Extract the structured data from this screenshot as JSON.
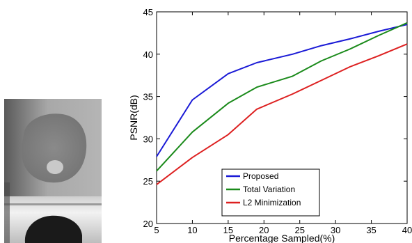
{
  "chart_data": {
    "type": "line",
    "xlabel": "Percentage Sampled(%)",
    "ylabel": "PSNR(dB)",
    "xlim": [
      5,
      40
    ],
    "ylim": [
      20,
      45
    ],
    "xticks": [
      5,
      10,
      15,
      20,
      25,
      30,
      35,
      40
    ],
    "yticks": [
      20,
      25,
      30,
      35,
      40,
      45
    ],
    "grid": false,
    "legend_position": "bottom-left",
    "series": [
      {
        "name": "Proposed",
        "color": "#1a1ad6",
        "x": [
          5,
          10,
          15,
          19,
          24,
          28,
          32,
          36,
          40
        ],
        "y": [
          27.9,
          34.6,
          37.7,
          39.0,
          40.0,
          41.0,
          41.8,
          42.7,
          43.5
        ]
      },
      {
        "name": "Total Variation",
        "color": "#1a8a1a",
        "x": [
          5,
          10,
          15,
          19,
          24,
          28,
          32,
          36,
          40
        ],
        "y": [
          26.2,
          30.8,
          34.2,
          36.1,
          37.4,
          39.2,
          40.6,
          42.2,
          43.7
        ]
      },
      {
        "name": "L2 Minimization",
        "color": "#dd2020",
        "x": [
          5,
          10,
          15,
          19,
          24,
          28,
          32,
          36,
          40
        ],
        "y": [
          24.6,
          27.8,
          30.5,
          33.5,
          35.3,
          36.9,
          38.5,
          39.8,
          41.2
        ]
      }
    ]
  },
  "image": {
    "icon": "grayscale-sample-photo"
  }
}
